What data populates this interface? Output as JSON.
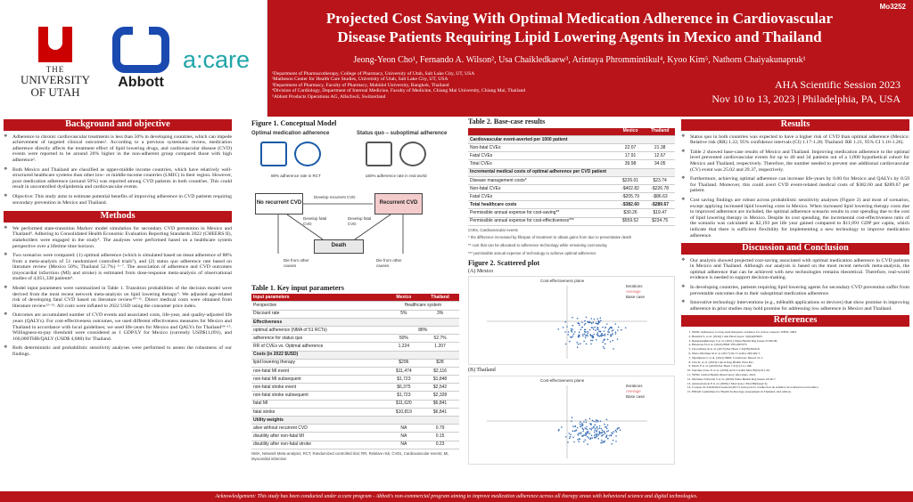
{
  "poster_id": "Mo3252",
  "logos": {
    "utah_the": "THE",
    "utah_name_1": "UNIVERSITY",
    "utah_name_2": "OF UTAH",
    "abbott": "Abbott",
    "acare": "a:care"
  },
  "title_line1": "Projected Cost Saving With Optimal Medication Adherence in Cardiovascular",
  "title_line2": "Disease Patients Requiring Lipid Lowering Agents in Mexico and Thailand",
  "authors": "Jeong-Yeon Cho¹, Fernando A. Wilson², Usa Chaikledkaew³, Arintaya Phrommintikul⁴, Kyoo Kim⁵, Nathorn Chaiyakunapruk¹",
  "affiliations": [
    "¹Department of Pharmacotherapy, College of Pharmacy, University of Utah, Salt Lake City, UT, USA",
    "²Matheson Center for Health Care Studies, University of Utah, Salt Lake City, UT, USA",
    "³Department of Pharmacy, Faculty of Pharmacy, Mahidol University, Bangkok, Thailand",
    "⁴Division of Cardiology, Department of Internal Medicine, Faculty of Medicine, Chiang Mai University, Chiang Mai, Thailand",
    "⁵Abbott Products Operations AG, Allschwil, Switzerland"
  ],
  "session": "AHA Scientific Session 2023",
  "dates": "Nov 10 to 13, 2023 | Philadelphia, PA, USA",
  "background": {
    "heading": "Background and objective",
    "bullets": [
      "Adherence to chronic cardiovascular treatments is less than 50% in developing countries, which can impede achievement of targeted clinical outcomes¹. According to a previous systematic review, medication adherence directly affects the treatment effect of lipid lowering drugs, and cardiovascular disease (CVD) events were reported to be around 20% higher in the non-adherent group compared those with high adherence².",
      "Both Mexico and Thailand are classified as upper-middle income countries, which have relatively well-structured healthcare systems than other low- or middle-income countries (LMIC) in their region. However, poor medication adherence (around 50%) was reported among CVD patients in both countries. This could result in uncontrolled dyslipidemia and cardiovascular events.",
      "Objective: This study aims to estimate potential benefits of improving adherence in CVD patients requiring secondary prevention in Mexico and Thailand."
    ]
  },
  "methods": {
    "heading": "Methods",
    "bullets": [
      "We performed state-transition Markov model simulation for secondary CVD prevention in Mexico and Thailand³. Adhering to Consolidated Health Economic Evaluation Reporting Standards 2022 (CHEERS II), stakeholders were engaged in the study⁴. The analyses were performed based on a healthcare system perspective over a lifetime time horizon.",
      "Two scenarios were compared: (1) optimal adherence (which is simulated based on mean adherence of 88% from a meta-analysis of 51 randomized controlled trials⁵), and (2) status quo adherence rate based on literature review (Mexico 50%; Thailand 52.7%) ⁶⁻⁷. The association of adherence and CVD outcomes (myocardial infarction (MI) and stroke) is estimated from dose-response meta-analysis of observational studies of 4,051,338 patients⁸.",
      "Model input parameters were summarized in Table 1. Transition probabilities of the decision model were derived from the most recent network meta-analysis on lipid lowering therapy⁹. We adjusted age-related risk of developing fatal CVD based on literature review¹⁰⁻¹¹. Direct medical costs were obtained from literature review¹²⁻¹³. All costs were inflated to 2022 USD using the consumer price index.",
      "Outcomes are accumulated number of CVD events and associated costs, life-year, and quality-adjusted life years (QALYs). For cost-effectiveness outcomes, we used different effectiveness measures for Mexico and Thailand in accordance with local guidelines; we used life-years for Mexico and QALYs for Thailand¹⁴⁻¹⁵. Willingness-to-pay threshold were considered as 1 GDP/LY for Mexico (currently USD$11,091), and 160,000THB/QALY (USD$ 4,688) for Thailand.",
      "Both deterministic and probabilistic sensitivity analyses were performed to assess the robustness of our findings."
    ]
  },
  "figure1": {
    "title": "Figure 1. Conceptual Model",
    "optimal_label": "Optimal medication adherence",
    "statusquo_label": "Status quo – suboptimal adherence",
    "optimal_caption": "88% adherence rate in RCT",
    "statusquo_caption": "≤50% adherence rate in real world",
    "box_no_recurrent": "No recurrent CVD",
    "box_recurrent": "Recurrent CVD",
    "box_death": "Death",
    "arrow_develop": "Develop recurrent CVD",
    "arrow_fatal_left": "Develop fatal CVD",
    "arrow_fatal_right": "Develop fatal CVD",
    "arrow_die_left": "Die from other causes",
    "arrow_die_right": "Die from other causes"
  },
  "table1": {
    "title": "Table 1. Key input parameters",
    "columns": [
      "Input parameters",
      "Mexico",
      "Thailand"
    ],
    "rows": [
      {
        "type": "row",
        "label": "Perspective",
        "merged": "Healthcare system"
      },
      {
        "type": "row",
        "label": "Discount rate",
        "mx": "5%",
        "th": "3%"
      },
      {
        "type": "sub",
        "label": "Effectiveness"
      },
      {
        "type": "row",
        "label": "optimal adherence (NMA of 51 RCTs)",
        "merged": "88%"
      },
      {
        "type": "row",
        "label": "adherence for status quo",
        "mx": "50%",
        "th": "52.7%"
      },
      {
        "type": "row",
        "label": "RR of CVEs vs. Optimal adherence",
        "mx": "1.224",
        "th": "1.207"
      },
      {
        "type": "sub",
        "label": "Costs (in 2022 $USD)"
      },
      {
        "type": "row",
        "label": "lipid lowering therapy",
        "mx": "$296",
        "th": "$28"
      },
      {
        "type": "row",
        "label": "non-fatal MI event",
        "mx": "$11,474",
        "th": "$2,116"
      },
      {
        "type": "row",
        "label": "non-fatal MI subsequent",
        "mx": "$1,723",
        "th": "$1,848"
      },
      {
        "type": "row",
        "label": "non-fatal stroke event",
        "mx": "$6,375",
        "th": "$2,542"
      },
      {
        "type": "row",
        "label": "non-fatal stroke subsequent",
        "mx": "$1,723",
        "th": "$2,328"
      },
      {
        "type": "row",
        "label": "fatal MI",
        "mx": "$11,620",
        "th": "$6,841"
      },
      {
        "type": "row",
        "label": "fatal stroke",
        "mx": "$10,819",
        "th": "$6,841"
      },
      {
        "type": "sub",
        "label": "Utility weights"
      },
      {
        "type": "row",
        "label": "alive without recurrent CVD",
        "mx": "NA",
        "th": "0.79"
      },
      {
        "type": "row",
        "label": "disutility after non-fatal MI",
        "mx": "NA",
        "th": "0.15"
      },
      {
        "type": "row",
        "label": "disutility after non-fatal stroke",
        "mx": "NA",
        "th": "0.23"
      }
    ],
    "note": "NMA, Network Meta-analysis; RCT, Randomized controlled trial; RR, Relative risk; CVEs, Cardiovascular events; MI, Myocardial infarction"
  },
  "table2": {
    "title": "Table 2. Base-case results",
    "columns": [
      "",
      "Mexico",
      "Thailand"
    ],
    "rows": [
      {
        "type": "sub",
        "label": "Cardiovascular event-averted per 1000 patient"
      },
      {
        "type": "row",
        "label": "Non-fatal CVEs",
        "mx": "22.07",
        "th": "21.38"
      },
      {
        "type": "row",
        "label": "Fatal CVEs",
        "mx": "17.91",
        "th": "12.67"
      },
      {
        "type": "row",
        "label": "Total CVEs",
        "mx": "39.98",
        "th": "34.05"
      },
      {
        "type": "sub",
        "label": "Incremental medical costs of optimal adherence per CVD patient"
      },
      {
        "type": "row",
        "label": "Disease management costs*",
        "mx": "$226.01",
        "th": "$23.74"
      },
      {
        "type": "row",
        "label": "Non-fatal CVEs",
        "mx": "-$402.82",
        "th": "-$226.78"
      },
      {
        "type": "row",
        "label": "Fatal CVEs",
        "mx": "-$205.79",
        "th": "-$86.63"
      },
      {
        "type": "tot",
        "label": "Total healthcare costs",
        "mx": "-$382.60",
        "th": "-$289.67"
      },
      {
        "type": "row",
        "label": "Permissible annual expense for cost-saving**",
        "mx": "$30.26",
        "th": "$19.47"
      },
      {
        "type": "row",
        "label": "Permissible annual expense for cost-effectiveness***",
        "mx": "$559.52",
        "th": "$234.75"
      }
    ],
    "notes": [
      "CVEs, Cardiovascular events",
      "* the difference increased by lifespan of treatment to obtain gains from due to preventative death",
      "** cost that can be allocated to adherence technology while remaining cost-saving",
      "*** permissible annual expense of technology to achieve optimal adherence"
    ]
  },
  "figure2": {
    "title": "Figure 2. Scattered plot",
    "mexico_label": "(A) Mexico",
    "thailand_label": "(B) Thailand",
    "plot_title": "Cost-effectiveness plane",
    "legend": [
      "Iterations",
      "Average",
      "Base case"
    ]
  },
  "results": {
    "heading": "Results",
    "bullets": [
      "Status quo in both countries was expected to have a higher risk of CVD than optimal adherence (Mexico: Relative risk (RR) 1.22, 95% confidence intervals (CI) 1.17-1.28; Thailand: RR 1.21, 95% CI 1.16-1.26).",
      "Table 2 showed base-case results of Mexico and Thailand. Improving medication adherence to the optimal level prevented cardiovascular events for up to 40 and 34 patients out of a 1,000 hypothetical cohort for Mexico and Thailand, respectively. Therefore, the number needed to prevent one additional cardiovascular (CV) event was 25.02 and 29.37, respectively.",
      "Furthermore, achieving optimal adherence can increase life-years by 0.60 for Mexico and QALYs by 0.59 for Thailand. Moreover, this could avert CVD event-related medical costs of $382.60 and $289.67 per patient.",
      "Cost saving findings are robust across probabilistic sensitivity analyses (Figure 2) and most of scenarios, except applying increased lipid lowering costs in Mexico. When increased lipid lowering therapy costs due to improved adherence are included, the optimal adherence scenario results in cost spending due to the cost of lipid lowering therapy in Mexico. Despite its cost spending, the incremental cost-effectiveness ratio of the scenario was calculated as $2,193 per life year gained compared to $11,091 GDP per capita, which indicate that there is sufficient flexibility for implementing a new technology to improve medication adherence."
    ]
  },
  "discussion": {
    "heading": "Discussion and Conclusion",
    "bullets": [
      "Our analysis showed projected cost-saving associated with optimal medication adherence in CVD patients in Mexico and Thailand. Although our analysis is based on the most recent network meta-analysis, the optimal adherence that can be achieved with new technologies remains theoretical. Therefore, real-world evidence is needed to support decision-making.",
      "In developing countries, patients requiring lipid lowering agents for secondary CVD prevention suffer from preventable outcomes due to their suboptimal medication adherence.",
      "Innovative technology interventions (e.g., mHealth applications or devices) that show promise in improving adherence in prior studies may hold promise for addressing low adherence in Mexico and Thailand."
    ]
  },
  "references": {
    "heading": "References",
    "items": [
      "WHO. Adherence to long-term therapies: evidence for action. Geneva: WHO; 2003.",
      "Bansilal S, et al. (2016) J Am Heart Assoc 5(9):e003925.",
      "Rungruanghiranya S et al. (2021) Value Health Reg Issues 25:89-96.",
      "Husereau D et al. (2022) BMJ 376:e067975.",
      "Chowdhury R et al. (2013) Eur Heart J 34(38):2940-8.",
      "Nieto-Martinez R et al. (2017) Int J Cardiol 249:402-7.",
      "Ngamjarus C et al. (2021) BMC Cardiovasc Disord 21:1.",
      "Chu K, et al. (2023) Lancet Reg Health West Pac.",
      "Mach F et al. (2020) Eur Heart J 41(1):111-188.",
      "Sanchez-Cruz JJ et al. (2019) Arch Cardiol Mex 89(3):221-30.",
      "WHO. Global Health Observatory life tables. 2021.",
      "Martinez-Valverde S et al. (2020) Value Health Reg Issues 23:40-7.",
      "Anukoolsawat P et al. (2006) J Med Assoc Thai 89(Suppl 5).",
      "Consejo de Salubridad General (2017) Guia para la conduccion de estudios de evaluacion economica.",
      "HITAP. Guidelines for Health Technology Assessment in Thailand, 2nd edition."
    ]
  },
  "acknowledgement": "Acknowledgement: This study has been conducted under a:care program - Abbott's non-commercial program aiming to improve medication adherence across all therapy areas with behavioral science and digital technologies."
}
